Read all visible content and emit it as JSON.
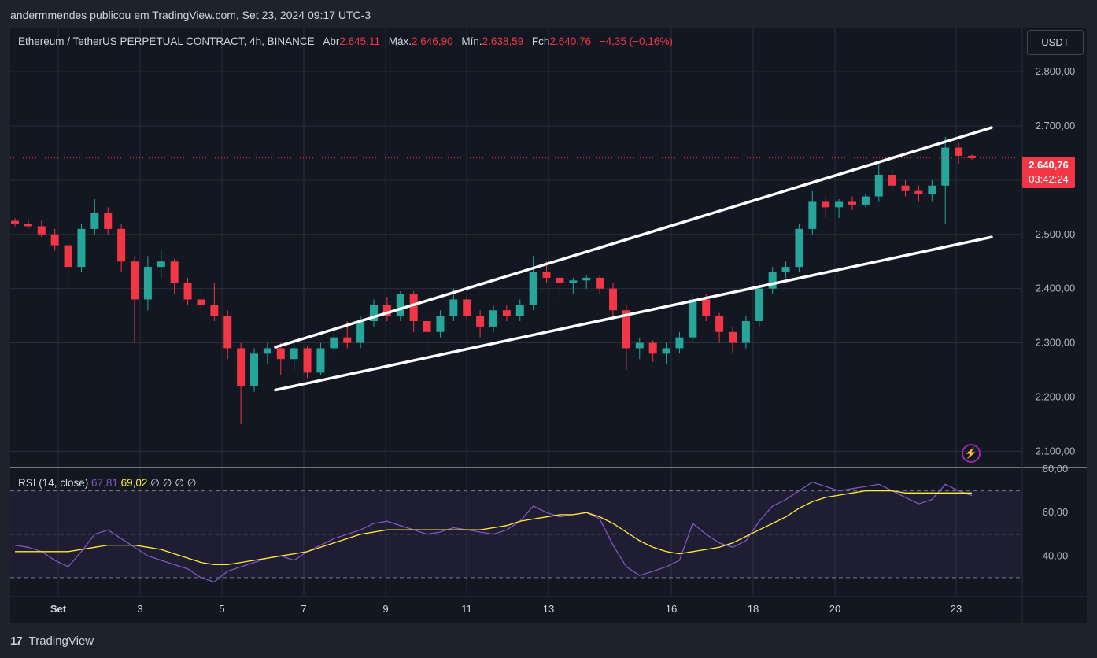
{
  "header": {
    "publish_text": "andermmendes publicou em TradingView.com, Set 23, 2024 09:17 UTC-3"
  },
  "legend": {
    "symbol": "Ethereum / TetherUS PERPETUAL CONTRACT, 4h, BINANCE",
    "open_label": "Abr",
    "open_value": "2.645,11",
    "high_label": "Máx.",
    "high_value": "2.646,90",
    "low_label": "Mín.",
    "low_value": "2.638,59",
    "close_label": "Fch",
    "close_value": "2.640,76",
    "change": "−4,35 (−0,16%)"
  },
  "currency_button": "USDT",
  "price_tag": {
    "price": "2.640,76",
    "countdown": "03:42:24"
  },
  "rsi_legend": {
    "title": "RSI (14, close)",
    "rsi_value": "67,81",
    "ma_value": "69,02",
    "empty_values": "∅ ∅ ∅ ∅"
  },
  "footer": {
    "logo_mark": "17",
    "brand": "TradingView"
  },
  "icons": {
    "alert": "lightning-bolt-icon",
    "brand": "tradingview-logo-icon"
  },
  "colors": {
    "background": "#131722",
    "up": "#26a69a",
    "down": "#f23645",
    "rsi_line": "#7e57c2",
    "rsi_ma": "#ffeb3b",
    "trend_line": "#ffffff"
  },
  "chart_data": [
    {
      "type": "candlestick",
      "title": "Ethereum / TetherUS PERPETUAL CONTRACT, 4h, BINANCE",
      "x_tick_labels": [
        "Set",
        "3",
        "5",
        "7",
        "9",
        "11",
        "13",
        "16",
        "18",
        "20",
        "23"
      ],
      "y_tick_labels": [
        "2.100,00",
        "2.200,00",
        "2.300,00",
        "2.400,00",
        "2.500,00",
        "2.600,00",
        "2.700,00",
        "2.800,00"
      ],
      "ylim": [
        2070,
        2880
      ],
      "last_price": 2640.76,
      "grid": true,
      "ohlc_sampled": [
        [
          2525,
          2530,
          2515,
          2520
        ],
        [
          2520,
          2528,
          2510,
          2515
        ],
        [
          2515,
          2525,
          2495,
          2500
        ],
        [
          2500,
          2510,
          2470,
          2480
        ],
        [
          2480,
          2500,
          2400,
          2440
        ],
        [
          2440,
          2520,
          2430,
          2510
        ],
        [
          2510,
          2565,
          2500,
          2540
        ],
        [
          2540,
          2550,
          2500,
          2510
        ],
        [
          2510,
          2520,
          2430,
          2450
        ],
        [
          2450,
          2460,
          2300,
          2380
        ],
        [
          2380,
          2460,
          2360,
          2440
        ],
        [
          2440,
          2470,
          2420,
          2450
        ],
        [
          2450,
          2455,
          2390,
          2410
        ],
        [
          2410,
          2420,
          2370,
          2380
        ],
        [
          2380,
          2400,
          2350,
          2370
        ],
        [
          2370,
          2410,
          2340,
          2350
        ],
        [
          2350,
          2360,
          2270,
          2290
        ],
        [
          2290,
          2300,
          2150,
          2220
        ],
        [
          2220,
          2290,
          2210,
          2280
        ],
        [
          2280,
          2300,
          2260,
          2290
        ],
        [
          2290,
          2300,
          2240,
          2270
        ],
        [
          2270,
          2300,
          2250,
          2290
        ],
        [
          2290,
          2295,
          2235,
          2245
        ],
        [
          2245,
          2300,
          2240,
          2290
        ],
        [
          2290,
          2320,
          2280,
          2310
        ],
        [
          2310,
          2340,
          2290,
          2300
        ],
        [
          2300,
          2350,
          2290,
          2340
        ],
        [
          2340,
          2380,
          2330,
          2370
        ],
        [
          2370,
          2385,
          2340,
          2350
        ],
        [
          2350,
          2395,
          2340,
          2390
        ],
        [
          2390,
          2395,
          2320,
          2340
        ],
        [
          2340,
          2350,
          2280,
          2320
        ],
        [
          2320,
          2360,
          2310,
          2350
        ],
        [
          2350,
          2400,
          2340,
          2380
        ],
        [
          2380,
          2385,
          2340,
          2350
        ],
        [
          2350,
          2360,
          2310,
          2330
        ],
        [
          2330,
          2370,
          2320,
          2360
        ],
        [
          2360,
          2370,
          2340,
          2350
        ],
        [
          2350,
          2380,
          2340,
          2370
        ],
        [
          2370,
          2460,
          2360,
          2430
        ],
        [
          2430,
          2450,
          2410,
          2420
        ],
        [
          2420,
          2425,
          2380,
          2410
        ],
        [
          2410,
          2420,
          2390,
          2415
        ],
        [
          2415,
          2425,
          2400,
          2420
        ],
        [
          2420,
          2425,
          2390,
          2400
        ],
        [
          2400,
          2410,
          2350,
          2360
        ],
        [
          2360,
          2370,
          2250,
          2290
        ],
        [
          2290,
          2310,
          2270,
          2300
        ],
        [
          2300,
          2305,
          2265,
          2280
        ],
        [
          2280,
          2300,
          2260,
          2290
        ],
        [
          2290,
          2320,
          2280,
          2310
        ],
        [
          2310,
          2390,
          2300,
          2380
        ],
        [
          2380,
          2390,
          2340,
          2350
        ],
        [
          2350,
          2355,
          2300,
          2320
        ],
        [
          2320,
          2330,
          2280,
          2300
        ],
        [
          2300,
          2350,
          2290,
          2340
        ],
        [
          2340,
          2410,
          2330,
          2400
        ],
        [
          2400,
          2440,
          2390,
          2430
        ],
        [
          2430,
          2450,
          2420,
          2440
        ],
        [
          2440,
          2520,
          2430,
          2510
        ],
        [
          2510,
          2580,
          2500,
          2560
        ],
        [
          2560,
          2570,
          2530,
          2550
        ],
        [
          2550,
          2565,
          2530,
          2560
        ],
        [
          2560,
          2570,
          2545,
          2555
        ],
        [
          2555,
          2575,
          2550,
          2570
        ],
        [
          2570,
          2630,
          2560,
          2610
        ],
        [
          2610,
          2620,
          2580,
          2590
        ],
        [
          2590,
          2600,
          2570,
          2580
        ],
        [
          2580,
          2590,
          2560,
          2575
        ],
        [
          2575,
          2600,
          2560,
          2590
        ],
        [
          2590,
          2680,
          2520,
          2660
        ],
        [
          2660,
          2670,
          2630,
          2645
        ],
        [
          2645,
          2647,
          2638,
          2640.76
        ]
      ],
      "trend_lines": [
        {
          "name": "upper",
          "from": [
            "7",
            2292
          ],
          "to": [
            "23",
            2697
          ]
        },
        {
          "name": "lower",
          "from": [
            "7",
            2213
          ],
          "to": [
            "23",
            2495
          ]
        }
      ]
    },
    {
      "type": "line",
      "title": "RSI (14, close)",
      "y_tick_labels": [
        "40,00",
        "60,00",
        "80,00"
      ],
      "ylim": [
        22,
        80
      ],
      "bands": [
        30,
        50,
        70
      ],
      "series": [
        {
          "name": "RSI",
          "values": [
            45,
            44,
            42,
            38,
            35,
            42,
            50,
            52,
            48,
            44,
            40,
            38,
            36,
            34,
            30,
            28,
            33,
            35,
            37,
            39,
            40,
            38,
            42,
            45,
            48,
            50,
            52,
            55,
            56,
            54,
            52,
            50,
            51,
            53,
            52,
            51,
            50,
            52,
            56,
            63,
            60,
            58,
            59,
            60,
            57,
            45,
            35,
            31,
            33,
            35,
            38,
            55,
            50,
            46,
            44,
            47,
            56,
            63,
            66,
            70,
            74,
            72,
            70,
            71,
            72,
            73,
            70,
            67,
            64,
            66,
            73,
            70,
            67.81
          ]
        },
        {
          "name": "RSI MA",
          "values": [
            42,
            42,
            42,
            42,
            42,
            43,
            44,
            45,
            45,
            45,
            44,
            43,
            41,
            39,
            37,
            36,
            36,
            37,
            38,
            39,
            40,
            41,
            42,
            44,
            46,
            48,
            50,
            51,
            52,
            52,
            52,
            52,
            52,
            52,
            52,
            52,
            53,
            54,
            56,
            57,
            58,
            59,
            59,
            60,
            58,
            55,
            51,
            47,
            44,
            42,
            41,
            42,
            43,
            44,
            46,
            49,
            52,
            55,
            58,
            62,
            65,
            67,
            68,
            69,
            70,
            70,
            70,
            69,
            69,
            69,
            69,
            69,
            69.02
          ]
        }
      ]
    }
  ]
}
